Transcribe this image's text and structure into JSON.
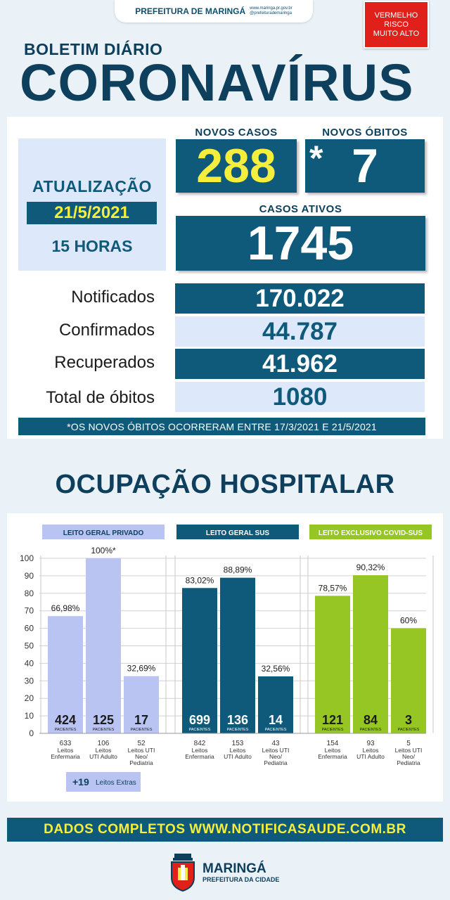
{
  "header": {
    "org": "PREFEITURA DE MARINGÁ",
    "site": "www.maringa.pr.gov.br",
    "social": "@prefeiturademaringa",
    "risk_lines": [
      "VERMELHO",
      "RISCO",
      "MUITO ALTO"
    ],
    "risk_color": "#e0201b"
  },
  "title": {
    "small": "BOLETIM DIÁRIO",
    "big": "CORONAVÍRUS"
  },
  "update": {
    "label": "ATUALIZAÇÃO",
    "date": "21/5/2021",
    "hour": "15 HORAS"
  },
  "highlights": {
    "new_cases_label": "NOVOS CASOS",
    "new_cases": "288",
    "new_deaths_label": "NOVOS ÓBITOS",
    "new_deaths_mark": "*",
    "new_deaths": "7",
    "active_label": "CASOS ATIVOS",
    "active": "1745"
  },
  "stats": [
    {
      "label": "Notificados",
      "value": "170.022"
    },
    {
      "label": "Confirmados",
      "value": "44.787"
    },
    {
      "label": "Recuperados",
      "value": "41.962"
    },
    {
      "label": "Total de óbitos",
      "value": "1080"
    }
  ],
  "note": "*OS NOVOS ÓBITOS OCORRERAM ENTRE 17/3/2021 E 21/5/2021",
  "hospital_title": "OCUPAÇÃO HOSPITALAR",
  "chart_data": {
    "type": "bar",
    "ylim": [
      0,
      100
    ],
    "yticks": [
      0,
      10,
      20,
      30,
      40,
      50,
      60,
      70,
      80,
      90,
      100
    ],
    "patients_label": "PACIENTES",
    "groups": [
      {
        "title": "LEITO GERAL PRIVADO",
        "color": "#b9c4f2",
        "header_color": "#b9c4f2",
        "header_text_color": "#0d3f5c",
        "count_color": "#1b1b1b",
        "bars": [
          {
            "value": 66.98,
            "label": "66,98%",
            "patients": "424",
            "beds": "633",
            "desc": [
              "Leitos",
              "Enfermaria"
            ]
          },
          {
            "value": 100,
            "label": "100%*",
            "patients": "125",
            "beds": "106",
            "desc": [
              "Leitos",
              "UTI Adulto"
            ]
          },
          {
            "value": 32.69,
            "label": "32,69%",
            "patients": "17",
            "beds": "52",
            "desc": [
              "Leitos UTI",
              "Neo/",
              "Pediatria"
            ]
          }
        ]
      },
      {
        "title": "LEITO GERAL SUS",
        "color": "#0f5a7a",
        "header_color": "#0f5a7a",
        "header_text_color": "#ffffff",
        "count_color": "#ffffff",
        "bars": [
          {
            "value": 83.02,
            "label": "83,02%",
            "patients": "699",
            "beds": "842",
            "desc": [
              "Leitos",
              "Enfermaria"
            ]
          },
          {
            "value": 88.89,
            "label": "88,89%",
            "patients": "136",
            "beds": "153",
            "desc": [
              "Leitos",
              "UTI Adulto"
            ]
          },
          {
            "value": 32.56,
            "label": "32,56%",
            "patients": "14",
            "beds": "43",
            "desc": [
              "Leitos UTI",
              "Neo/",
              "Pediatria"
            ]
          }
        ]
      },
      {
        "title": "LEITO EXCLUSIVO COVID-SUS",
        "color": "#95c623",
        "header_color": "#95c623",
        "header_text_color": "#ffffff",
        "count_color": "#1b1b1b",
        "bars": [
          {
            "value": 78.57,
            "label": "78,57%",
            "patients": "121",
            "beds": "154",
            "desc": [
              "Leitos",
              "Enfermaria"
            ]
          },
          {
            "value": 90.32,
            "label": "90,32%",
            "patients": "84",
            "beds": "93",
            "desc": [
              "Leitos",
              "UTI Adulto"
            ]
          },
          {
            "value": 60,
            "label": "60%",
            "patients": "3",
            "beds": "5",
            "desc": [
              "Leitos UTI",
              "Neo/",
              "Pediatria"
            ]
          }
        ]
      }
    ],
    "extra": {
      "count": "+19",
      "label": "Leitos Extras"
    }
  },
  "footer": {
    "link_text": "DADOS COMPLETOS  WWW.NOTIFICASAUDE.COM.BR",
    "city": "MARINGÁ",
    "city_sub": "PREFEITURA DA CIDADE"
  }
}
